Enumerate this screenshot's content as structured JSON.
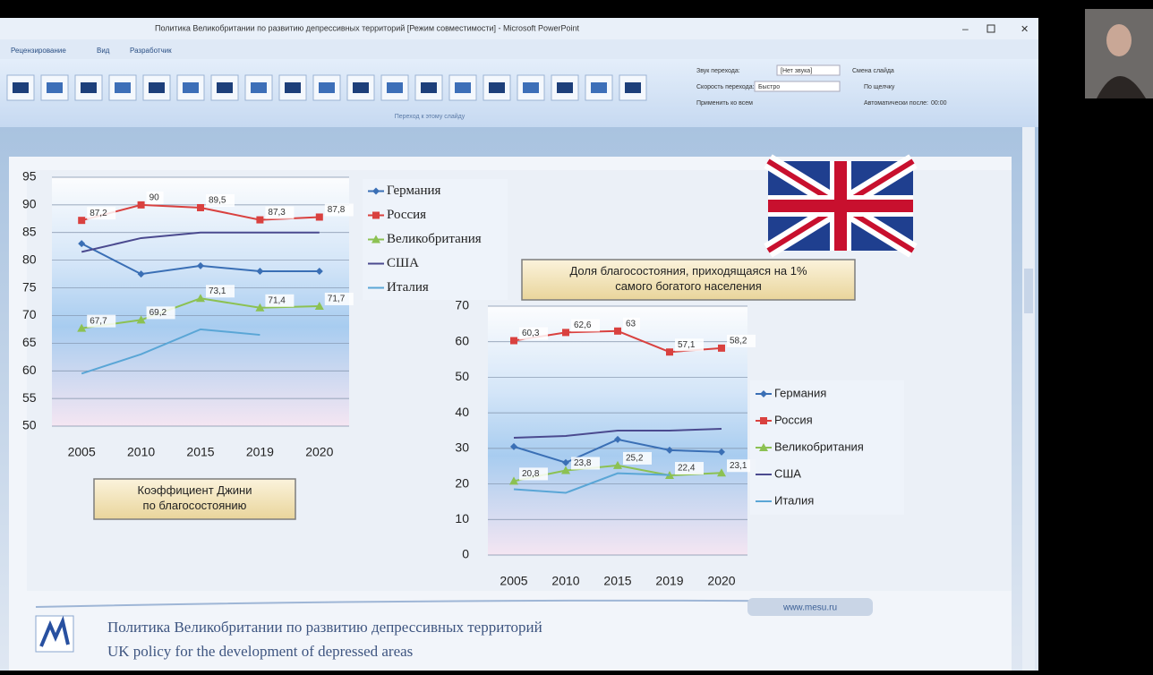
{
  "window": {
    "title": "Политика Великобритании по развитию депрессивных территорий [Режим совместимости] - Microsoft PowerPoint",
    "tabs": [
      "Рецензирование",
      "Вид",
      "Разработчик"
    ]
  },
  "ribbon": {
    "group_label": "Переход к этому слайду",
    "sound": "Звук перехода:",
    "sound_value": "[Нет звука]",
    "speed": "Скорость перехода:",
    "speed_value": "Быстро",
    "apply_all": "Применить ко всем",
    "advance": "Смена слайда",
    "on_click": "По щелчку",
    "auto_after": "Автоматически после:",
    "auto_time": "00:00"
  },
  "chart_data": [
    {
      "type": "line",
      "title": "Коэффициент Джини по благосостоянию",
      "categories": [
        "2005",
        "2010",
        "2015",
        "2019",
        "2020"
      ],
      "ylim": [
        50,
        95
      ],
      "yticks": [
        50,
        55,
        60,
        65,
        70,
        75,
        80,
        85,
        90,
        95
      ],
      "grid": true,
      "series": [
        {
          "name": "Германия",
          "color": "#3a6fb5",
          "marker": "diamond",
          "values": [
            83,
            77.5,
            79,
            78,
            78
          ]
        },
        {
          "name": "Россия",
          "color": "#d9413f",
          "marker": "square",
          "values": [
            87.2,
            90,
            89.5,
            87.3,
            87.8
          ],
          "value_labels": [
            "87,2",
            "90",
            "89,5",
            "87,3",
            "87,8"
          ]
        },
        {
          "name": "Великобритания",
          "color": "#8cc152",
          "marker": "triangle",
          "values": [
            67.7,
            69.2,
            73.1,
            71.4,
            71.7
          ],
          "value_labels": [
            "67,7",
            "69,2",
            "73,1",
            "71,4",
            "71,7"
          ]
        },
        {
          "name": "США",
          "color": "#4b4a8f",
          "marker": "none",
          "values": [
            81.5,
            84,
            85,
            85,
            85
          ]
        },
        {
          "name": "Италия",
          "color": "#5aa6d6",
          "marker": "none",
          "values": [
            59.5,
            63,
            67.5,
            66.5,
            null
          ]
        }
      ]
    },
    {
      "type": "line",
      "title": "Доля благосостояния, приходящаяся на 1% самого богатого населения",
      "categories": [
        "2005",
        "2010",
        "2015",
        "2019",
        "2020"
      ],
      "ylim": [
        0,
        70
      ],
      "yticks": [
        0,
        10,
        20,
        30,
        40,
        50,
        60,
        70
      ],
      "grid": true,
      "series": [
        {
          "name": "Германия",
          "color": "#3a6fb5",
          "marker": "diamond",
          "values": [
            30.5,
            26,
            32.5,
            29.5,
            29
          ]
        },
        {
          "name": "Россия",
          "color": "#d9413f",
          "marker": "square",
          "values": [
            60.3,
            62.6,
            63,
            57.1,
            58.2
          ],
          "value_labels": [
            "60,3",
            "62,6",
            "63",
            "57,1",
            "58,2"
          ]
        },
        {
          "name": "Великобритания",
          "color": "#8cc152",
          "marker": "triangle",
          "values": [
            20.8,
            23.8,
            25.2,
            22.4,
            23.1
          ],
          "value_labels": [
            "20,8",
            "23,8",
            "25,2",
            "22,4",
            "23,1"
          ]
        },
        {
          "name": "США",
          "color": "#4b4a8f",
          "marker": "none",
          "values": [
            33,
            33.5,
            35,
            35,
            35.5
          ]
        },
        {
          "name": "Италия",
          "color": "#5aa6d6",
          "marker": "none",
          "values": [
            18.5,
            17.5,
            23,
            22.5,
            null
          ]
        }
      ]
    }
  ],
  "slide": {
    "url": "www.mesu.ru",
    "footer_ru": "Политика Великобритании по развитию депрессивных территорий",
    "footer_en": "UK policy for the development of depressed areas"
  }
}
